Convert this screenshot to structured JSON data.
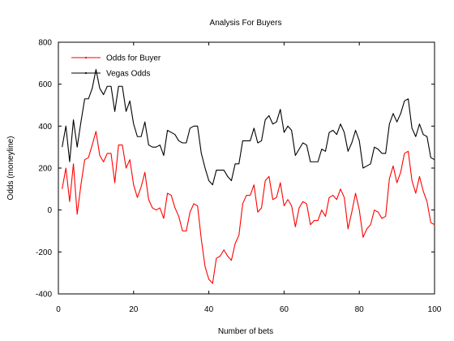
{
  "chart_data": {
    "type": "line",
    "title": "Analysis For Buyers",
    "xlabel": "Number of bets",
    "ylabel": "Odds (moneyline)",
    "xlim": [
      0,
      100
    ],
    "ylim": [
      -400,
      800
    ],
    "xticks": [
      "0",
      "20",
      "40",
      "60",
      "80",
      "100"
    ],
    "yticks": [
      "-400",
      "-200",
      "0",
      "200",
      "400",
      "600",
      "800"
    ],
    "grid": false,
    "legend_position": "top-left",
    "x": [
      1,
      2,
      3,
      4,
      5,
      6,
      7,
      8,
      9,
      10,
      11,
      12,
      13,
      14,
      15,
      16,
      17,
      18,
      19,
      20,
      21,
      22,
      23,
      24,
      25,
      26,
      27,
      28,
      29,
      30,
      31,
      32,
      33,
      34,
      35,
      36,
      37,
      38,
      39,
      40,
      41,
      42,
      43,
      44,
      45,
      46,
      47,
      48,
      49,
      50,
      51,
      52,
      53,
      54,
      55,
      56,
      57,
      58,
      59,
      60,
      61,
      62,
      63,
      64,
      65,
      66,
      67,
      68,
      69,
      70,
      71,
      72,
      73,
      74,
      75,
      76,
      77,
      78,
      79,
      80,
      81,
      82,
      83,
      84,
      85,
      86,
      87,
      88,
      89,
      90,
      91,
      92,
      93,
      94,
      95,
      96,
      97,
      98,
      99,
      100
    ],
    "series": [
      {
        "name": "Odds for Buyer",
        "color": "#ff0000",
        "values": [
          100,
          200,
          40,
          220,
          -20,
          120,
          240,
          250,
          310,
          375,
          260,
          230,
          270,
          270,
          130,
          310,
          310,
          200,
          240,
          120,
          60,
          110,
          180,
          50,
          10,
          0,
          10,
          -40,
          80,
          70,
          10,
          -30,
          -100,
          -100,
          -10,
          30,
          20,
          -140,
          -270,
          -330,
          -350,
          -230,
          -220,
          -190,
          -220,
          -240,
          -160,
          -120,
          30,
          70,
          70,
          120,
          -10,
          10,
          140,
          160,
          50,
          60,
          130,
          20,
          50,
          20,
          -80,
          10,
          40,
          30,
          -70,
          -50,
          -50,
          0,
          -30,
          60,
          70,
          50,
          100,
          60,
          -90,
          -10,
          80,
          0,
          -130,
          -90,
          -70,
          0,
          -10,
          -40,
          -30,
          150,
          210,
          130,
          180,
          270,
          280,
          140,
          80,
          160,
          90,
          40,
          -60,
          -70
        ]
      },
      {
        "name": "Vegas Odds",
        "color": "#000000",
        "values": [
          300,
          400,
          230,
          430,
          300,
          420,
          530,
          530,
          580,
          670,
          580,
          550,
          590,
          590,
          470,
          590,
          590,
          470,
          520,
          410,
          350,
          350,
          420,
          310,
          300,
          300,
          310,
          260,
          380,
          370,
          360,
          330,
          320,
          320,
          390,
          400,
          400,
          270,
          200,
          140,
          120,
          190,
          190,
          190,
          160,
          140,
          220,
          220,
          330,
          330,
          330,
          390,
          320,
          330,
          430,
          450,
          410,
          420,
          480,
          370,
          400,
          380,
          260,
          290,
          320,
          310,
          230,
          230,
          230,
          290,
          280,
          370,
          380,
          360,
          410,
          370,
          280,
          320,
          380,
          330,
          200,
          210,
          220,
          300,
          290,
          270,
          270,
          410,
          460,
          420,
          460,
          520,
          530,
          390,
          350,
          410,
          360,
          350,
          250,
          240
        ]
      }
    ]
  }
}
